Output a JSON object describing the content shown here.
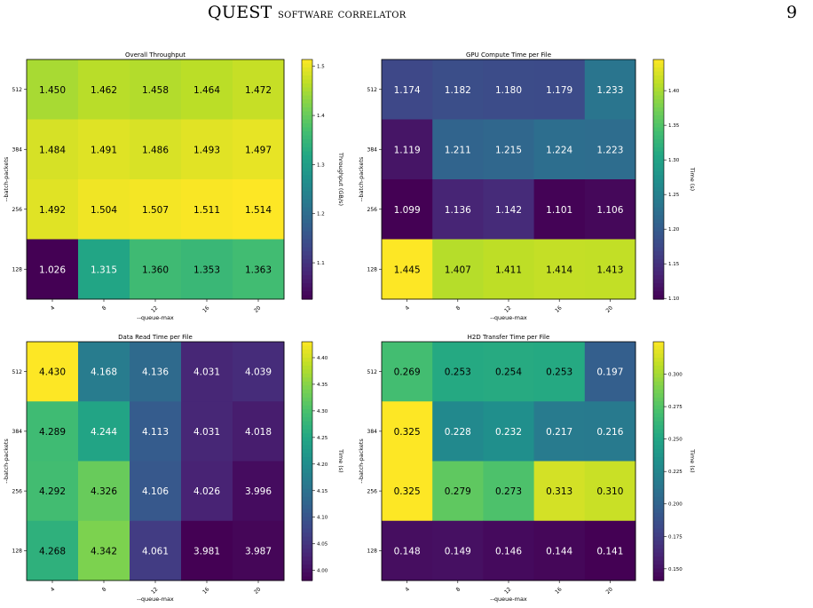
{
  "header": {
    "title_main": "QUEST",
    "title_rest": "software correlator",
    "page_number": "9"
  },
  "chart_data": [
    {
      "type": "heatmap",
      "title": "Overall Throughput",
      "xlabel": "--queue-max",
      "ylabel": "--batch-packets",
      "x_categories": [
        "4",
        "8",
        "12",
        "16",
        "20"
      ],
      "y_categories": [
        "512",
        "384",
        "256",
        "128"
      ],
      "values": [
        [
          1.45,
          1.462,
          1.458,
          1.464,
          1.472
        ],
        [
          1.484,
          1.491,
          1.486,
          1.493,
          1.497
        ],
        [
          1.492,
          1.504,
          1.507,
          1.511,
          1.514
        ],
        [
          1.026,
          1.315,
          1.36,
          1.353,
          1.363
        ]
      ],
      "value_labels": [
        [
          "1.450",
          "1.462",
          "1.458",
          "1.464",
          "1.472"
        ],
        [
          "1.484",
          "1.491",
          "1.486",
          "1.493",
          "1.497"
        ],
        [
          "1.492",
          "1.504",
          "1.507",
          "1.511",
          "1.514"
        ],
        [
          "1.026",
          "1.315",
          "1.360",
          "1.353",
          "1.363"
        ]
      ],
      "colorbar": {
        "label": "Throughput (GB/s)",
        "min": 1.026,
        "max": 1.514,
        "ticks": [
          1.1,
          1.2,
          1.3,
          1.4,
          1.5
        ],
        "tick_labels": [
          "1.1",
          "1.2",
          "1.3",
          "1.4",
          "1.5"
        ]
      },
      "colormap": "viridis"
    },
    {
      "type": "heatmap",
      "title": "GPU Compute Time per File",
      "xlabel": "--queue-max",
      "ylabel": "--batch-packets",
      "x_categories": [
        "4",
        "8",
        "12",
        "16",
        "20"
      ],
      "y_categories": [
        "512",
        "384",
        "256",
        "128"
      ],
      "values": [
        [
          1.174,
          1.182,
          1.18,
          1.179,
          1.233
        ],
        [
          1.119,
          1.211,
          1.215,
          1.224,
          1.223
        ],
        [
          1.099,
          1.136,
          1.142,
          1.101,
          1.106
        ],
        [
          1.445,
          1.407,
          1.411,
          1.414,
          1.413
        ]
      ],
      "value_labels": [
        [
          "1.174",
          "1.182",
          "1.180",
          "1.179",
          "1.233"
        ],
        [
          "1.119",
          "1.211",
          "1.215",
          "1.224",
          "1.223"
        ],
        [
          "1.099",
          "1.136",
          "1.142",
          "1.101",
          "1.106"
        ],
        [
          "1.445",
          "1.407",
          "1.411",
          "1.414",
          "1.413"
        ]
      ],
      "colorbar": {
        "label": "Time (s)",
        "min": 1.099,
        "max": 1.445,
        "ticks": [
          1.1,
          1.15,
          1.2,
          1.25,
          1.3,
          1.35,
          1.4
        ],
        "tick_labels": [
          "1.10",
          "1.15",
          "1.20",
          "1.25",
          "1.30",
          "1.35",
          "1.40"
        ]
      },
      "colormap": "viridis"
    },
    {
      "type": "heatmap",
      "title": "Data Read Time per File",
      "xlabel": "--queue-max",
      "ylabel": "--batch-packets",
      "x_categories": [
        "4",
        "8",
        "12",
        "16",
        "20"
      ],
      "y_categories": [
        "512",
        "384",
        "256",
        "128"
      ],
      "values": [
        [
          4.43,
          4.168,
          4.136,
          4.031,
          4.039
        ],
        [
          4.289,
          4.244,
          4.113,
          4.031,
          4.018
        ],
        [
          4.292,
          4.326,
          4.106,
          4.026,
          3.996
        ],
        [
          4.268,
          4.342,
          4.061,
          3.981,
          3.987
        ]
      ],
      "value_labels": [
        [
          "4.430",
          "4.168",
          "4.136",
          "4.031",
          "4.039"
        ],
        [
          "4.289",
          "4.244",
          "4.113",
          "4.031",
          "4.018"
        ],
        [
          "4.292",
          "4.326",
          "4.106",
          "4.026",
          "3.996"
        ],
        [
          "4.268",
          "4.342",
          "4.061",
          "3.981",
          "3.987"
        ]
      ],
      "colorbar": {
        "label": "Time (s)",
        "min": 3.981,
        "max": 4.43,
        "ticks": [
          4.0,
          4.05,
          4.1,
          4.15,
          4.2,
          4.25,
          4.3,
          4.35,
          4.4
        ],
        "tick_labels": [
          "4.00",
          "4.05",
          "4.10",
          "4.15",
          "4.20",
          "4.25",
          "4.30",
          "4.35",
          "4.40"
        ]
      },
      "colormap": "viridis"
    },
    {
      "type": "heatmap",
      "title": "H2D Transfer Time per File",
      "xlabel": "--queue-max",
      "ylabel": "--batch-packets",
      "x_categories": [
        "4",
        "8",
        "12",
        "16",
        "20"
      ],
      "y_categories": [
        "512",
        "384",
        "256",
        "128"
      ],
      "values": [
        [
          0.269,
          0.253,
          0.254,
          0.253,
          0.197
        ],
        [
          0.325,
          0.228,
          0.232,
          0.217,
          0.216
        ],
        [
          0.325,
          0.279,
          0.273,
          0.313,
          0.31
        ],
        [
          0.148,
          0.149,
          0.146,
          0.144,
          0.141
        ]
      ],
      "value_labels": [
        [
          "0.269",
          "0.253",
          "0.254",
          "0.253",
          "0.197"
        ],
        [
          "0.325",
          "0.228",
          "0.232",
          "0.217",
          "0.216"
        ],
        [
          "0.325",
          "0.279",
          "0.273",
          "0.313",
          "0.310"
        ],
        [
          "0.148",
          "0.149",
          "0.146",
          "0.144",
          "0.141"
        ]
      ],
      "colorbar": {
        "label": "Time (s)",
        "min": 0.141,
        "max": 0.325,
        "ticks": [
          0.15,
          0.175,
          0.2,
          0.225,
          0.25,
          0.275,
          0.3
        ],
        "tick_labels": [
          "0.150",
          "0.175",
          "0.200",
          "0.225",
          "0.250",
          "0.275",
          "0.300"
        ]
      },
      "colormap": "viridis"
    }
  ]
}
